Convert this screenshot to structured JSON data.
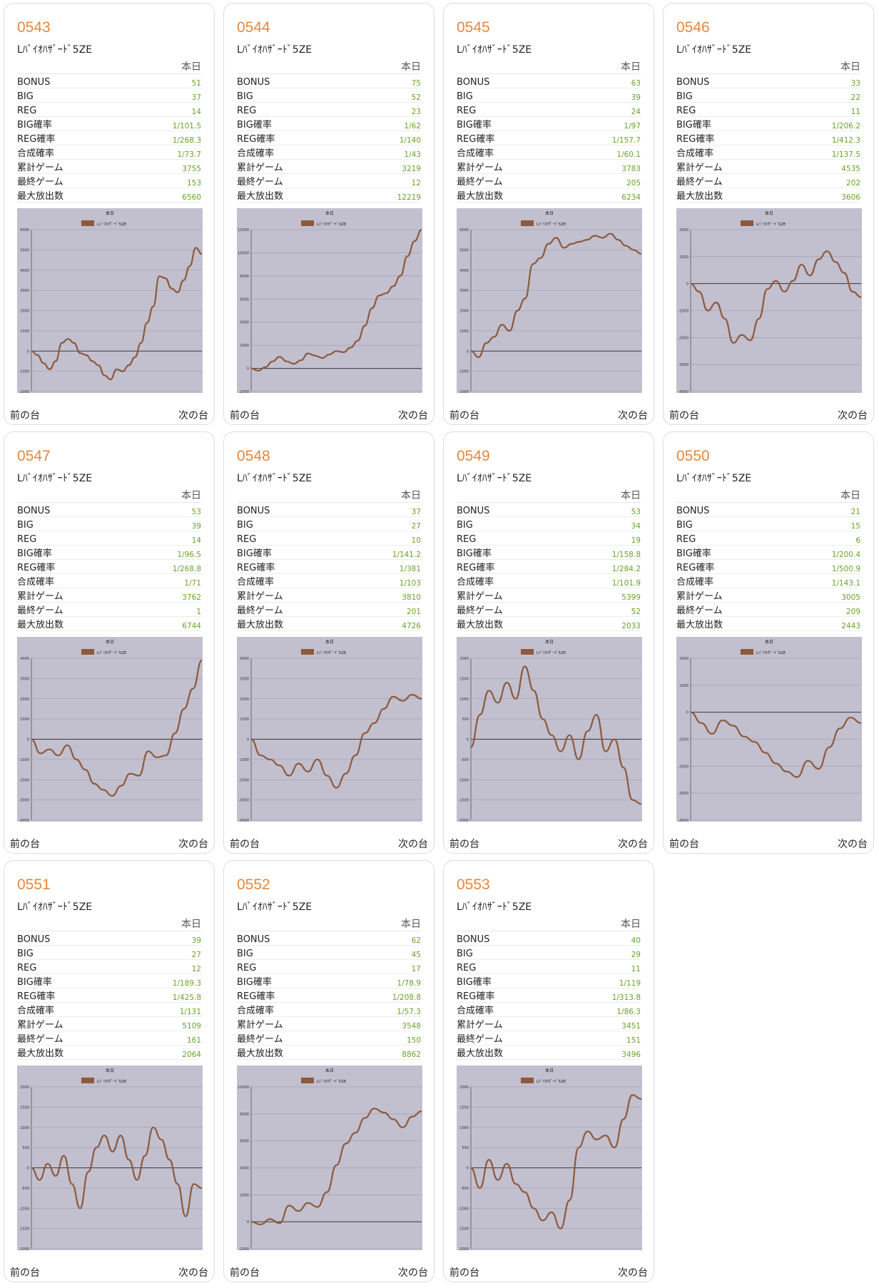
{
  "ui": {
    "today_label": "本日",
    "prev_label": "前の台",
    "next_label": "次の台",
    "stat_keys": [
      "BONUS",
      "BIG",
      "REG",
      "BIG確率",
      "REG確率",
      "合成確率",
      "累計ゲーム",
      "最終ゲーム",
      "最大放出数"
    ]
  },
  "colors": {
    "accent": "#e8863a",
    "value": "#6aa22a",
    "chart_bg": "#c2bfcf",
    "line": "#8c5a3c"
  },
  "machines": [
    {
      "number": "0543",
      "model": "Lﾊﾞｲｵﾊｻﾞｰﾄﾞ5ZE",
      "stats": [
        "51",
        "37",
        "14",
        "1/101.5",
        "1/268.3",
        "1/73.7",
        "3755",
        "153",
        "6560"
      ],
      "chart_data": {
        "type": "line",
        "title": "本日",
        "series_name": "Lﾊﾞｲｵﾊｻﾞｰﾄﾞ5ZE",
        "ylim": [
          -2000,
          6000
        ],
        "yticks": [
          -2000,
          -1000,
          0,
          1000,
          2000,
          3000,
          4000,
          5000,
          6000
        ],
        "values": [
          0,
          -200,
          -600,
          -900,
          -500,
          400,
          600,
          400,
          -100,
          -200,
          -500,
          -700,
          -1200,
          -1400,
          -900,
          -1000,
          -700,
          -300,
          400,
          1400,
          2200,
          3700,
          3600,
          3100,
          2900,
          3500,
          4200,
          5100,
          4800
        ]
      }
    },
    {
      "number": "0544",
      "model": "Lﾊﾞｲｵﾊｻﾞｰﾄﾞ5ZE",
      "stats": [
        "75",
        "52",
        "23",
        "1/62",
        "1/140",
        "1/43",
        "3219",
        "12",
        "12219"
      ],
      "chart_data": {
        "type": "line",
        "title": "本日",
        "series_name": "Lﾊﾞｲｵﾊｻﾞｰﾄﾞ5ZE",
        "ylim": [
          -2000,
          12000
        ],
        "yticks": [
          -2000,
          0,
          2000,
          4000,
          6000,
          8000,
          10000,
          12000
        ],
        "values": [
          0,
          -200,
          100,
          600,
          1000,
          600,
          400,
          700,
          1300,
          1100,
          900,
          1200,
          1500,
          1400,
          1800,
          2400,
          3700,
          5200,
          6300,
          6500,
          7100,
          8000,
          9700,
          11000,
          12000
        ]
      }
    },
    {
      "number": "0545",
      "model": "Lﾊﾞｲｵﾊｻﾞｰﾄﾞ5ZE",
      "stats": [
        "63",
        "39",
        "24",
        "1/97",
        "1/157.7",
        "1/60.1",
        "3783",
        "205",
        "6234"
      ],
      "chart_data": {
        "type": "line",
        "title": "本日",
        "series_name": "Lﾊﾞｲｵﾊｻﾞｰﾄﾞ5ZE",
        "ylim": [
          -2000,
          6000
        ],
        "yticks": [
          -2000,
          -1000,
          0,
          1000,
          2000,
          3000,
          4000,
          5000,
          6000
        ],
        "values": [
          0,
          -300,
          400,
          700,
          1300,
          1000,
          2000,
          2600,
          4300,
          4600,
          5300,
          5600,
          5100,
          5300,
          5400,
          5500,
          5700,
          5600,
          5800,
          5500,
          5200,
          5000,
          4800
        ]
      }
    },
    {
      "number": "0546",
      "model": "Lﾊﾞｲｵﾊｻﾞｰﾄﾞ5ZE",
      "stats": [
        "33",
        "22",
        "11",
        "1/206.2",
        "1/412.3",
        "1/137.5",
        "4535",
        "202",
        "3606"
      ],
      "chart_data": {
        "type": "line",
        "title": "本日",
        "series_name": "Lﾊﾞｲｵﾊｻﾞｰﾄﾞ5ZE",
        "ylim": [
          -4000,
          2000
        ],
        "yticks": [
          -4000,
          -3000,
          -2000,
          -1000,
          0,
          1000,
          2000
        ],
        "values": [
          0,
          -300,
          -1000,
          -700,
          -1300,
          -2200,
          -1900,
          -2100,
          -1300,
          -200,
          100,
          -300,
          100,
          700,
          300,
          900,
          1200,
          800,
          400,
          -300,
          -500
        ]
      }
    },
    {
      "number": "0547",
      "model": "Lﾊﾞｲｵﾊｻﾞｰﾄﾞ5ZE",
      "stats": [
        "53",
        "39",
        "14",
        "1/96.5",
        "1/268.8",
        "1/71",
        "3762",
        "1",
        "6744"
      ],
      "chart_data": {
        "type": "line",
        "title": "本日",
        "series_name": "Lﾊﾞｲｵﾊｻﾞｰﾄﾞ5ZE",
        "ylim": [
          -4000,
          4000
        ],
        "yticks": [
          -4000,
          -3000,
          -2000,
          -1000,
          0,
          1000,
          2000,
          3000,
          4000
        ],
        "values": [
          0,
          -700,
          -500,
          -800,
          -300,
          -1000,
          -1500,
          -2200,
          -2500,
          -2800,
          -2300,
          -1700,
          -1800,
          -600,
          -900,
          -800,
          300,
          1500,
          2500,
          3900
        ]
      }
    },
    {
      "number": "0548",
      "model": "Lﾊﾞｲｵﾊｻﾞｰﾄﾞ5ZE",
      "stats": [
        "37",
        "27",
        "10",
        "1/141.2",
        "1/381",
        "1/103",
        "3810",
        "201",
        "4726"
      ],
      "chart_data": {
        "type": "line",
        "title": "本日",
        "series_name": "Lﾊﾞｲｵﾊｻﾞｰﾄﾞ5ZE",
        "ylim": [
          -4000,
          4000
        ],
        "yticks": [
          -4000,
          -3000,
          -2000,
          -1000,
          0,
          1000,
          2000,
          3000,
          4000
        ],
        "values": [
          0,
          -800,
          -1000,
          -1300,
          -1800,
          -1200,
          -1600,
          -1000,
          -1800,
          -2400,
          -1700,
          -800,
          300,
          800,
          1500,
          2100,
          1900,
          2200,
          2000
        ]
      }
    },
    {
      "number": "0549",
      "model": "Lﾊﾞｲｵﾊｻﾞｰﾄﾞ5ZE",
      "stats": [
        "53",
        "34",
        "19",
        "1/158.8",
        "1/284.2",
        "1/101.9",
        "5399",
        "52",
        "2033"
      ],
      "chart_data": {
        "type": "line",
        "title": "本日",
        "series_name": "Lﾊﾞｲｵﾊｻﾞｰﾄﾞ5ZE",
        "ylim": [
          -2000,
          2000
        ],
        "yticks": [
          -2000,
          -1500,
          -1000,
          -500,
          0,
          500,
          1000,
          1500,
          2000
        ],
        "values": [
          -200,
          600,
          1200,
          900,
          1400,
          1000,
          1800,
          1200,
          500,
          100,
          -300,
          100,
          -500,
          200,
          600,
          -300,
          0,
          -700,
          -1500,
          -1600
        ]
      }
    },
    {
      "number": "0550",
      "model": "Lﾊﾞｲｵﾊｻﾞｰﾄﾞ5ZE",
      "stats": [
        "21",
        "15",
        "6",
        "1/200.4",
        "1/500.9",
        "1/143.1",
        "3005",
        "209",
        "2443"
      ],
      "chart_data": {
        "type": "line",
        "title": "本日",
        "series_name": "Lﾊﾞｲｵﾊｻﾞｰﾄﾞ5ZE",
        "ylim": [
          -4000,
          2000
        ],
        "yticks": [
          -4000,
          -3000,
          -2000,
          -1000,
          0,
          1000,
          2000
        ],
        "values": [
          0,
          -400,
          -800,
          -300,
          -500,
          -900,
          -1100,
          -1500,
          -1900,
          -2200,
          -2400,
          -1800,
          -2100,
          -1300,
          -600,
          -200,
          -400
        ]
      }
    },
    {
      "number": "0551",
      "model": "Lﾊﾞｲｵﾊｻﾞｰﾄﾞ5ZE",
      "stats": [
        "39",
        "27",
        "12",
        "1/189.3",
        "1/425.8",
        "1/131",
        "5109",
        "161",
        "2064"
      ],
      "chart_data": {
        "type": "line",
        "title": "本日",
        "series_name": "Lﾊﾞｲｵﾊｻﾞｰﾄﾞ5ZE",
        "ylim": [
          -2000,
          2000
        ],
        "yticks": [
          -2000,
          -1500,
          -1000,
          -500,
          0,
          500,
          1000,
          1500,
          2000
        ],
        "values": [
          0,
          -300,
          100,
          -200,
          300,
          -400,
          -1000,
          -100,
          500,
          800,
          400,
          800,
          200,
          -300,
          300,
          1000,
          700,
          200,
          -400,
          -1200,
          -400,
          -500
        ]
      }
    },
    {
      "number": "0552",
      "model": "Lﾊﾞｲｵﾊｻﾞｰﾄﾞ5ZE",
      "stats": [
        "62",
        "45",
        "17",
        "1/78.9",
        "1/208.8",
        "1/57.3",
        "3548",
        "150",
        "8862"
      ],
      "chart_data": {
        "type": "line",
        "title": "本日",
        "series_name": "Lﾊﾞｲｵﾊｻﾞｰﾄﾞ5ZE",
        "ylim": [
          -2000,
          10000
        ],
        "yticks": [
          -2000,
          0,
          2000,
          4000,
          6000,
          8000,
          10000
        ],
        "values": [
          0,
          -200,
          200,
          -100,
          1200,
          800,
          1400,
          1100,
          2200,
          4200,
          5800,
          6600,
          7700,
          8400,
          8100,
          7600,
          7000,
          7800,
          8200
        ]
      }
    },
    {
      "number": "0553",
      "model": "Lﾊﾞｲｵﾊｻﾞｰﾄﾞ5ZE",
      "stats": [
        "40",
        "29",
        "11",
        "1/119",
        "1/313.8",
        "1/86.3",
        "3451",
        "151",
        "3496"
      ],
      "chart_data": {
        "type": "line",
        "title": "本日",
        "series_name": "Lﾊﾞｲｵﾊｻﾞｰﾄﾞ5ZE",
        "ylim": [
          -2000,
          2000
        ],
        "yticks": [
          -2000,
          -1500,
          -1000,
          -500,
          0,
          500,
          1000,
          1500,
          2000
        ],
        "values": [
          0,
          -500,
          200,
          -300,
          100,
          -400,
          -600,
          -1000,
          -1300,
          -1100,
          -1500,
          -800,
          500,
          900,
          700,
          800,
          500,
          1200,
          1800,
          1700
        ]
      }
    }
  ]
}
